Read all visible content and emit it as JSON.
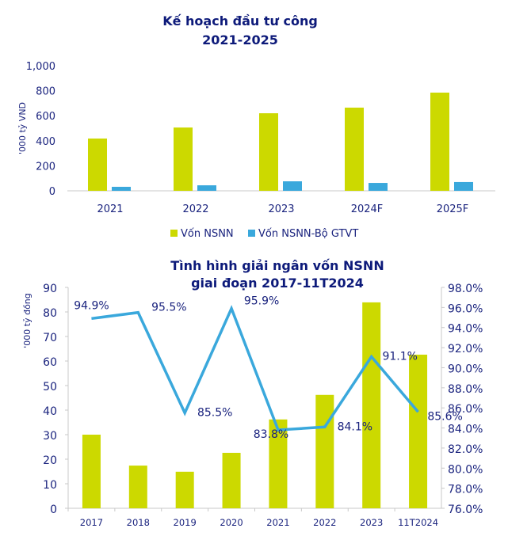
{
  "colors": {
    "green": "#ccd900",
    "blue": "#3aa8dc",
    "text": "#1a237e",
    "axis": "#c8c8c8"
  },
  "chart_data": [
    {
      "type": "bar",
      "title": [
        "Kế hoạch đầu tư công",
        "2021-2025"
      ],
      "ylabel": "'000 tỷ VND",
      "ylim": [
        0,
        1000
      ],
      "yticks": [
        "0",
        "200",
        "400",
        "600",
        "800",
        "1,000"
      ],
      "categories": [
        "2021",
        "2022",
        "2023",
        "2024F",
        "2025F"
      ],
      "series": [
        {
          "name": "Vốn NSNN",
          "values": [
            418,
            506,
            620,
            665,
            785
          ]
        },
        {
          "name": "Vốn NSNN-Bộ GTVT",
          "values": [
            32,
            44,
            76,
            63,
            70
          ]
        }
      ],
      "legend": "bottom",
      "grid": false
    },
    {
      "type": "bar+line",
      "title": [
        "Tình hình giải ngân vốn NSNN",
        "giai đoạn 2017-11T2024"
      ],
      "ylabel": "'000 tỷ đồng",
      "ylim": [
        0,
        90
      ],
      "yticks": [
        "0",
        "10",
        "20",
        "30",
        "40",
        "50",
        "60",
        "70",
        "80",
        "90"
      ],
      "y2lim": [
        76,
        98
      ],
      "y2ticks": [
        "76.0%",
        "78.0%",
        "80.0%",
        "82.0%",
        "84.0%",
        "86.0%",
        "88.0%",
        "90.0%",
        "92.0%",
        "94.0%",
        "96.0%",
        "98.0%"
      ],
      "categories": [
        "2017",
        "2018",
        "2019",
        "2020",
        "2021",
        "2022",
        "2023",
        "11T2024"
      ],
      "bars": [
        30,
        17.4,
        14.9,
        22.6,
        36.2,
        46.2,
        83.9,
        62.6
      ],
      "line": [
        94.9,
        95.5,
        85.5,
        95.9,
        83.8,
        84.1,
        91.1,
        85.6
      ],
      "line_labels": [
        "94.9%",
        "95.5%",
        "85.5%",
        "95.9%",
        "83.8%",
        "84.1%",
        "91.1%",
        "85.6%"
      ],
      "grid": false
    }
  ]
}
